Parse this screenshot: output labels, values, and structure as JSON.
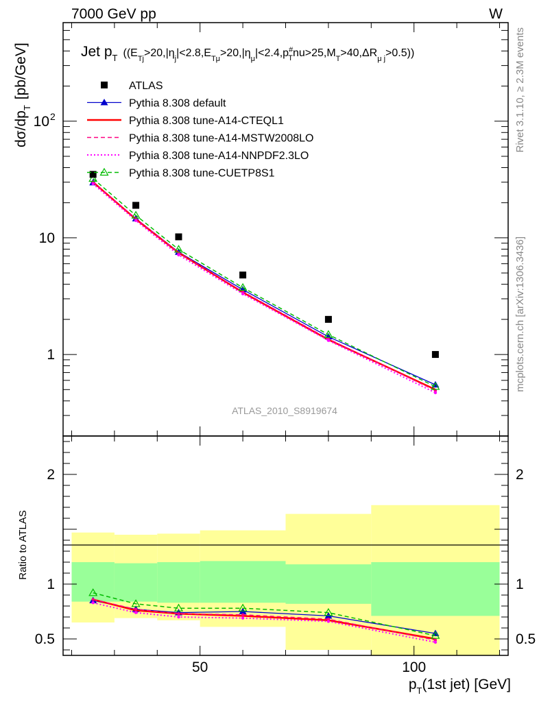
{
  "header": {
    "left": "7000 GeV pp",
    "right": "W"
  },
  "side_labels": {
    "rivet": "Rivet 3.1.10, ≥ 2.3M events",
    "mcplots": "mcplots.cern.ch [arXiv:1306.3436]"
  },
  "analysis_label": "ATLAS_2010_S8919674",
  "chart_data": {
    "type": "scatter",
    "title": "Jet p_T ((E_Tj>20,|η_j|<2.8,E_Tμ>20,|η_μ|<2.4,p_T^#nu>25,M_T>40,ΔR_μj>0.5))",
    "title_parts": {
      "jet": "Jet p",
      "paren_open": "((E",
      "t1": ">20,|η",
      "t2": "|<2.8,E",
      "t3": ">20,|η",
      "t4": "|<2.4,p",
      "t5": "nu>25,M",
      "t6": ">40,ΔR",
      "t7": ">0.5))"
    },
    "xlabel": "p_T(1st jet) [GeV]",
    "ylabel": "dσ/dp_T [pb/GeV]",
    "ratio_ylabel": "Ratio to ATLAS",
    "xlim": [
      18,
      122
    ],
    "ylim": [
      0.2,
      700
    ],
    "yscale": "log",
    "ratio_ylim": [
      0.35,
      2.35
    ],
    "x_ticks": [
      50,
      100
    ],
    "y_ticks": [
      "1",
      "10",
      "10^2"
    ],
    "ratio_ticks": [
      0.5,
      1,
      2
    ],
    "legend_position": "top-left",
    "x": [
      25,
      35,
      45,
      60,
      80,
      105
    ],
    "bin_edges": [
      20,
      30,
      40,
      50,
      70,
      90,
      120
    ],
    "data": {
      "name": "ATLAS",
      "values": [
        35,
        19,
        10.2,
        4.8,
        2.0,
        1.0
      ]
    },
    "uncertainty_bands": {
      "inner_green": [
        [
          0.84,
          1.2
        ],
        [
          0.84,
          1.19
        ],
        [
          0.83,
          1.2
        ],
        [
          0.83,
          1.21
        ],
        [
          0.82,
          1.18
        ],
        [
          0.71,
          1.2
        ]
      ],
      "outer_yellow": [
        [
          0.65,
          1.47
        ],
        [
          0.69,
          1.45
        ],
        [
          0.67,
          1.46
        ],
        [
          0.61,
          1.49
        ],
        [
          0.4,
          1.64
        ],
        [
          0.33,
          1.72
        ]
      ]
    },
    "series": [
      {
        "name": "Pythia 8.308 default",
        "color": "#0000cc",
        "style": "solid-triangle",
        "ratio": [
          0.85,
          0.77,
          0.74,
          0.75,
          0.71,
          0.55
        ]
      },
      {
        "name": "Pythia 8.308 tune-A14-CTEQL1",
        "color": "#ff0000",
        "style": "solid-thick",
        "ratio": [
          0.86,
          0.76,
          0.73,
          0.71,
          0.67,
          0.5
        ]
      },
      {
        "name": "Pythia 8.308 tune-A14-MSTW2008LO",
        "color": "#ff0080",
        "style": "dashed",
        "ratio": [
          0.86,
          0.77,
          0.73,
          0.72,
          0.68,
          0.49
        ]
      },
      {
        "name": "Pythia 8.308 tune-A14-NNPDF2.3LO",
        "color": "#ff00ff",
        "style": "dotted",
        "ratio": [
          0.83,
          0.74,
          0.7,
          0.69,
          0.66,
          0.47
        ]
      },
      {
        "name": "Pythia 8.308 tune-CUETP8S1",
        "color": "#00bb00",
        "style": "dashed-open-triangle",
        "ratio": [
          0.92,
          0.82,
          0.78,
          0.78,
          0.74,
          0.53
        ]
      }
    ]
  }
}
